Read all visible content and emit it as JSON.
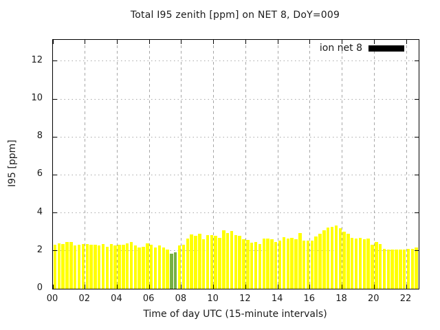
{
  "title": "Total I95 zenith [ppm] on NET 8, DoY=009",
  "legend": {
    "label": "ion net 8",
    "swatch_color": "#000000"
  },
  "axes": {
    "x": {
      "label": "Time of day UTC (15-minute intervals)",
      "ticks": [
        {
          "label": "00",
          "hour": 0
        },
        {
          "label": "02",
          "hour": 2
        },
        {
          "label": "04",
          "hour": 4
        },
        {
          "label": "06",
          "hour": 6
        },
        {
          "label": "08",
          "hour": 8
        },
        {
          "label": "10",
          "hour": 10
        },
        {
          "label": "12",
          "hour": 12
        },
        {
          "label": "14",
          "hour": 14
        },
        {
          "label": "16",
          "hour": 16
        },
        {
          "label": "18",
          "hour": 18
        },
        {
          "label": "20",
          "hour": 20
        },
        {
          "label": "22",
          "hour": 22
        }
      ],
      "range_hours": [
        0,
        22.77
      ]
    },
    "y": {
      "label": "I95 [ppm]",
      "ticks": [
        {
          "label": "0",
          "value": 0
        },
        {
          "label": "2",
          "value": 2
        },
        {
          "label": "4",
          "value": 4
        },
        {
          "label": "6",
          "value": 6
        },
        {
          "label": "8",
          "value": 8
        },
        {
          "label": "10",
          "value": 10
        },
        {
          "label": "12",
          "value": 12
        }
      ],
      "range": [
        0,
        13.12
      ]
    }
  },
  "chart_data": {
    "type": "bar",
    "title": "Total I95 zenith [ppm] on NET 8, DoY=009",
    "xlabel": "Time of day UTC (15-minute intervals)",
    "ylabel": "I95 [ppm]",
    "xlim_hours": [
      0,
      22.77
    ],
    "ylim": [
      0,
      13.12
    ],
    "grid": true,
    "legend_position": "top-right",
    "time_start": "00:00",
    "time_step_minutes": 15,
    "series": [
      {
        "name": "ion net 8",
        "values": [
          2.32,
          2.4,
          2.36,
          2.45,
          2.45,
          2.27,
          2.31,
          2.34,
          2.34,
          2.31,
          2.31,
          2.27,
          2.34,
          2.2,
          2.34,
          2.27,
          2.32,
          2.32,
          2.4,
          2.46,
          2.27,
          2.16,
          2.22,
          2.38,
          2.33,
          2.17,
          2.3,
          2.17,
          2.06,
          1.84,
          1.91,
          2.3,
          2.31,
          2.63,
          2.85,
          2.8,
          2.89,
          2.62,
          2.83,
          2.83,
          2.8,
          2.7,
          3.09,
          2.95,
          3.04,
          2.83,
          2.8,
          2.62,
          2.59,
          2.44,
          2.46,
          2.37,
          2.64,
          2.64,
          2.62,
          2.46,
          2.52,
          2.73,
          2.64,
          2.7,
          2.62,
          2.92,
          2.55,
          2.55,
          2.55,
          2.77,
          2.89,
          3.07,
          3.24,
          3.27,
          3.33,
          3.19,
          3.01,
          2.91,
          2.67,
          2.64,
          2.67,
          2.61,
          2.64,
          2.31,
          2.45,
          2.36,
          2.11,
          2.05,
          2.08,
          2.05,
          2.08,
          2.05,
          2.11,
          2.11,
          2.17
        ]
      }
    ],
    "highlight_bar_indices": [
      29,
      30
    ]
  },
  "colors": {
    "bar": "#ffff00",
    "highlight_bar": "#76b043",
    "grid": "#a7a7a7",
    "border": "#000000",
    "background": "#ffffff",
    "text": "#1a1a1a"
  }
}
